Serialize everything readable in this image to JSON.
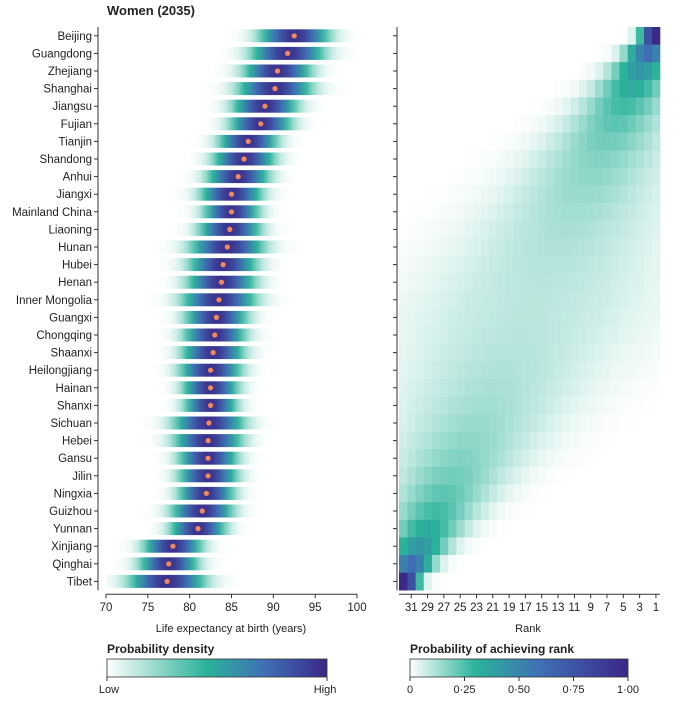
{
  "chart_data": [
    {
      "type": "density-strip",
      "title": "Women (2035)",
      "xlabel": "Life expectancy at birth (years)",
      "xlim": [
        70,
        100
      ],
      "xticks": [
        70,
        75,
        80,
        85,
        90,
        95,
        100
      ],
      "categories": [
        "Beijing",
        "Guangdong",
        "Zhejiang",
        "Shanghai",
        "Jiangsu",
        "Fujian",
        "Tianjin",
        "Shandong",
        "Anhui",
        "Jiangxi",
        "Mainland China",
        "Liaoning",
        "Hunan",
        "Hubei",
        "Henan",
        "Inner Mongolia",
        "Guangxi",
        "Chongqing",
        "Shaanxi",
        "Heilongjiang",
        "Hainan",
        "Shanxi",
        "Sichuan",
        "Hebei",
        "Gansu",
        "Jilin",
        "Ningxia",
        "Guizhou",
        "Yunnan",
        "Xinjiang",
        "Qinghai",
        "Tibet"
      ],
      "means": [
        92.5,
        91.7,
        90.5,
        90.2,
        89.0,
        88.5,
        87.0,
        86.5,
        85.8,
        85.0,
        85.0,
        84.8,
        84.5,
        84.0,
        83.8,
        83.5,
        83.2,
        83.0,
        82.8,
        82.5,
        82.5,
        82.5,
        82.3,
        82.2,
        82.2,
        82.2,
        82.0,
        81.5,
        81.0,
        78.0,
        77.5,
        77.3
      ],
      "sd": [
        2.3,
        2.4,
        2.2,
        2.4,
        2.1,
        2.0,
        1.9,
        2.0,
        2.0,
        2.0,
        1.8,
        2.0,
        2.4,
        2.2,
        2.2,
        2.4,
        2.0,
        2.0,
        2.0,
        2.0,
        1.8,
        1.7,
        2.3,
        2.2,
        1.9,
        1.9,
        1.8,
        2.0,
        1.8,
        1.9,
        1.9,
        2.5
      ],
      "colorbar": {
        "title": "Probability density",
        "low_label": "Low",
        "high_label": "High"
      }
    },
    {
      "type": "heatmap",
      "xlabel": "Rank",
      "xticks": [
        31,
        29,
        27,
        25,
        23,
        21,
        19,
        17,
        15,
        13,
        11,
        9,
        7,
        5,
        3,
        1
      ],
      "n_ranks": 32,
      "colorbar": {
        "title": "Probability of achieving rank",
        "ticks": [
          "0",
          "0·25",
          "0·50",
          "0·75",
          "1·00"
        ]
      }
    }
  ],
  "colors": {
    "low": "#ffffff",
    "mid": "#2bb39a",
    "high": "#3b2887",
    "marker": "#f08a5d"
  }
}
